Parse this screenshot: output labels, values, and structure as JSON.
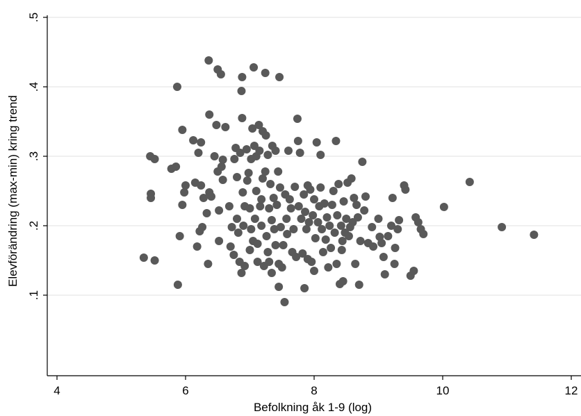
{
  "chart_data": {
    "type": "scatter",
    "title": "",
    "xlabel": "Befolkning åk 1-9 (log)",
    "ylabel": "Elevförändring (max-min) kring trend",
    "xlim": [
      4,
      12.1
    ],
    "ylim": [
      0,
      0.51
    ],
    "xticks": [
      {
        "value": 4,
        "label": "4"
      },
      {
        "value": 6,
        "label": "6"
      },
      {
        "value": 8,
        "label": "8"
      },
      {
        "value": 10,
        "label": "10"
      },
      {
        "value": 12,
        "label": "12"
      }
    ],
    "yticks": [
      {
        "value": 0.1,
        "label": ".1"
      },
      {
        "value": 0.2,
        "label": ".2"
      },
      {
        "value": 0.3,
        "label": ".3"
      },
      {
        "value": 0.4,
        "label": ".4"
      },
      {
        "value": 0.5,
        "label": ".5"
      }
    ],
    "grid": true,
    "marker_color": "#595959",
    "series": [
      {
        "points": [
          [
            5.35,
            0.154
          ],
          [
            5.45,
            0.3
          ],
          [
            5.52,
            0.296
          ],
          [
            5.46,
            0.246
          ],
          [
            5.46,
            0.24
          ],
          [
            5.52,
            0.15
          ],
          [
            5.78,
            0.282
          ],
          [
            5.85,
            0.285
          ],
          [
            5.87,
            0.4
          ],
          [
            5.88,
            0.115
          ],
          [
            5.91,
            0.185
          ],
          [
            5.95,
            0.338
          ],
          [
            5.95,
            0.23
          ],
          [
            5.98,
            0.248
          ],
          [
            6.0,
            0.258
          ],
          [
            6.12,
            0.323
          ],
          [
            6.15,
            0.262
          ],
          [
            6.18,
            0.17
          ],
          [
            6.2,
            0.305
          ],
          [
            6.22,
            0.192
          ],
          [
            6.24,
            0.258
          ],
          [
            6.24,
            0.32
          ],
          [
            6.26,
            0.198
          ],
          [
            6.28,
            0.24
          ],
          [
            6.33,
            0.218
          ],
          [
            6.35,
            0.145
          ],
          [
            6.36,
            0.438
          ],
          [
            6.37,
            0.36
          ],
          [
            6.37,
            0.248
          ],
          [
            6.4,
            0.242
          ],
          [
            6.45,
            0.3
          ],
          [
            6.48,
            0.345
          ],
          [
            6.5,
            0.425
          ],
          [
            6.5,
            0.278
          ],
          [
            6.52,
            0.222
          ],
          [
            6.52,
            0.178
          ],
          [
            6.55,
            0.418
          ],
          [
            6.56,
            0.285
          ],
          [
            6.58,
            0.295
          ],
          [
            6.58,
            0.266
          ],
          [
            6.62,
            0.342
          ],
          [
            6.68,
            0.228
          ],
          [
            6.7,
            0.17
          ],
          [
            6.72,
            0.198
          ],
          [
            6.75,
            0.158
          ],
          [
            6.76,
            0.296
          ],
          [
            6.78,
            0.312
          ],
          [
            6.8,
            0.21
          ],
          [
            6.8,
            0.27
          ],
          [
            6.82,
            0.19
          ],
          [
            6.84,
            0.148
          ],
          [
            6.85,
            0.305
          ],
          [
            6.87,
            0.132
          ],
          [
            6.87,
            0.394
          ],
          [
            6.88,
            0.414
          ],
          [
            6.88,
            0.355
          ],
          [
            6.89,
            0.248
          ],
          [
            6.9,
            0.2
          ],
          [
            6.92,
            0.142
          ],
          [
            6.92,
            0.228
          ],
          [
            6.95,
            0.31
          ],
          [
            6.96,
            0.265
          ],
          [
            6.98,
            0.276
          ],
          [
            7.0,
            0.225
          ],
          [
            7.0,
            0.165
          ],
          [
            7.02,
            0.296
          ],
          [
            7.02,
            0.195
          ],
          [
            7.04,
            0.34
          ],
          [
            7.05,
            0.178
          ],
          [
            7.06,
            0.428
          ],
          [
            7.07,
            0.315
          ],
          [
            7.08,
            0.21
          ],
          [
            7.1,
            0.3
          ],
          [
            7.1,
            0.25
          ],
          [
            7.12,
            0.174
          ],
          [
            7.12,
            0.148
          ],
          [
            7.14,
            0.345
          ],
          [
            7.15,
            0.308
          ],
          [
            7.16,
            0.228
          ],
          [
            7.18,
            0.238
          ],
          [
            7.18,
            0.2
          ],
          [
            7.2,
            0.336
          ],
          [
            7.2,
            0.268
          ],
          [
            7.22,
            0.142
          ],
          [
            7.24,
            0.42
          ],
          [
            7.24,
            0.278
          ],
          [
            7.25,
            0.33
          ],
          [
            7.26,
            0.185
          ],
          [
            7.28,
            0.302
          ],
          [
            7.28,
            0.162
          ],
          [
            7.3,
            0.225
          ],
          [
            7.3,
            0.148
          ],
          [
            7.32,
            0.26
          ],
          [
            7.34,
            0.208
          ],
          [
            7.34,
            0.132
          ],
          [
            7.35,
            0.315
          ],
          [
            7.37,
            0.24
          ],
          [
            7.38,
            0.195
          ],
          [
            7.4,
            0.308
          ],
          [
            7.4,
            0.172
          ],
          [
            7.42,
            0.23
          ],
          [
            7.44,
            0.278
          ],
          [
            7.45,
            0.112
          ],
          [
            7.45,
            0.145
          ],
          [
            7.46,
            0.414
          ],
          [
            7.47,
            0.255
          ],
          [
            7.48,
            0.198
          ],
          [
            7.5,
            0.14
          ],
          [
            7.52,
            0.172
          ],
          [
            7.54,
            0.09
          ],
          [
            7.55,
            0.245
          ],
          [
            7.57,
            0.21
          ],
          [
            7.58,
            0.188
          ],
          [
            7.6,
            0.308
          ],
          [
            7.62,
            0.238
          ],
          [
            7.64,
            0.225
          ],
          [
            7.66,
            0.162
          ],
          [
            7.68,
            0.195
          ],
          [
            7.7,
            0.256
          ],
          [
            7.72,
            0.155
          ],
          [
            7.74,
            0.354
          ],
          [
            7.75,
            0.322
          ],
          [
            7.76,
            0.228
          ],
          [
            7.78,
            0.305
          ],
          [
            7.8,
            0.21
          ],
          [
            7.82,
            0.16
          ],
          [
            7.84,
            0.245
          ],
          [
            7.85,
            0.11
          ],
          [
            7.86,
            0.22
          ],
          [
            7.88,
            0.195
          ],
          [
            7.9,
            0.258
          ],
          [
            7.9,
            0.152
          ],
          [
            7.92,
            0.205
          ],
          [
            7.94,
            0.252
          ],
          [
            7.96,
            0.148
          ],
          [
            7.98,
            0.215
          ],
          [
            8.0,
            0.238
          ],
          [
            8.0,
            0.135
          ],
          [
            8.02,
            0.182
          ],
          [
            8.04,
            0.32
          ],
          [
            8.06,
            0.205
          ],
          [
            8.08,
            0.228
          ],
          [
            8.1,
            0.302
          ],
          [
            8.1,
            0.255
          ],
          [
            8.12,
            0.195
          ],
          [
            8.14,
            0.162
          ],
          [
            8.16,
            0.232
          ],
          [
            8.18,
            0.18
          ],
          [
            8.2,
            0.212
          ],
          [
            8.22,
            0.14
          ],
          [
            8.24,
            0.2
          ],
          [
            8.26,
            0.168
          ],
          [
            8.28,
            0.23
          ],
          [
            8.3,
            0.25
          ],
          [
            8.32,
            0.19
          ],
          [
            8.34,
            0.322
          ],
          [
            8.35,
            0.145
          ],
          [
            8.36,
            0.215
          ],
          [
            8.38,
            0.26
          ],
          [
            8.4,
            0.116
          ],
          [
            8.42,
            0.2
          ],
          [
            8.43,
            0.165
          ],
          [
            8.44,
            0.178
          ],
          [
            8.45,
            0.12
          ],
          [
            8.46,
            0.235
          ],
          [
            8.48,
            0.19
          ],
          [
            8.5,
            0.21
          ],
          [
            8.52,
            0.262
          ],
          [
            8.54,
            0.185
          ],
          [
            8.56,
            0.198
          ],
          [
            8.58,
            0.268
          ],
          [
            8.6,
            0.205
          ],
          [
            8.62,
            0.24
          ],
          [
            8.64,
            0.145
          ],
          [
            8.66,
            0.23
          ],
          [
            8.68,
            0.212
          ],
          [
            8.7,
            0.115
          ],
          [
            8.72,
            0.178
          ],
          [
            8.75,
            0.292
          ],
          [
            8.78,
            0.222
          ],
          [
            8.8,
            0.242
          ],
          [
            8.84,
            0.175
          ],
          [
            8.9,
            0.198
          ],
          [
            8.92,
            0.17
          ],
          [
            9.0,
            0.21
          ],
          [
            9.02,
            0.184
          ],
          [
            9.05,
            0.175
          ],
          [
            9.08,
            0.155
          ],
          [
            9.1,
            0.13
          ],
          [
            9.15,
            0.185
          ],
          [
            9.2,
            0.2
          ],
          [
            9.22,
            0.24
          ],
          [
            9.25,
            0.145
          ],
          [
            9.26,
            0.168
          ],
          [
            9.3,
            0.195
          ],
          [
            9.32,
            0.208
          ],
          [
            9.4,
            0.258
          ],
          [
            9.42,
            0.252
          ],
          [
            9.5,
            0.128
          ],
          [
            9.55,
            0.135
          ],
          [
            9.58,
            0.212
          ],
          [
            9.62,
            0.205
          ],
          [
            9.66,
            0.195
          ],
          [
            9.7,
            0.188
          ],
          [
            10.02,
            0.227
          ],
          [
            10.42,
            0.263
          ],
          [
            10.92,
            0.198
          ],
          [
            11.42,
            0.187
          ]
        ]
      }
    ]
  }
}
